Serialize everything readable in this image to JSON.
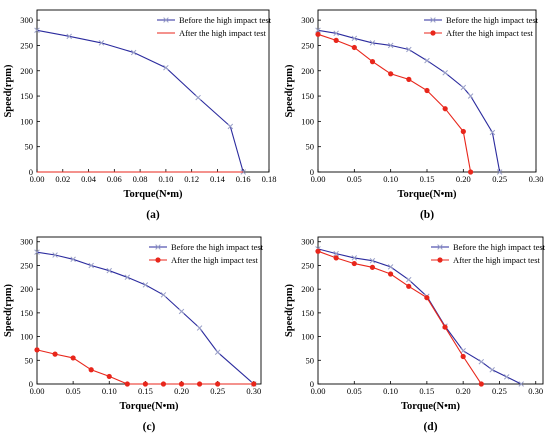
{
  "colors": {
    "before": "#2b2b9e",
    "after": "#e8261b",
    "axis": "#000000"
  },
  "chart_data": [
    {
      "type": "line",
      "panel_label": "(a)",
      "xlabel": "Torque(N•m)",
      "ylabel": "Speed(rpm)",
      "xlim": [
        0,
        0.18
      ],
      "ylim": [
        0,
        320
      ],
      "xticks": [
        "0.00",
        "0.02",
        "0.04",
        "0.06",
        "0.08",
        "0.10",
        "0.12",
        "0.14",
        "0.16",
        "0.18"
      ],
      "yticks": [
        "0",
        "50",
        "100",
        "150",
        "200",
        "250",
        "300"
      ],
      "legend_position": "top-right",
      "series": [
        {
          "name": "Before the high impact test",
          "color": "#2b2b9e",
          "marker": "x",
          "x": [
            0,
            0.025,
            0.05,
            0.075,
            0.1,
            0.125,
            0.15,
            0.16
          ],
          "y": [
            280,
            268,
            255,
            236,
            206,
            147,
            90,
            0
          ]
        },
        {
          "name": "After the high impact test",
          "color": "#e8261b",
          "marker": "none",
          "x": [
            0,
            0.16
          ],
          "y": [
            0,
            0
          ]
        }
      ]
    },
    {
      "type": "line",
      "panel_label": "(b)",
      "xlabel": "Torque(N•m)",
      "ylabel": "Speed(rpm)",
      "xlim": [
        0,
        0.3
      ],
      "ylim": [
        0,
        320
      ],
      "xticks": [
        "0.00",
        "0.05",
        "0.10",
        "0.15",
        "0.20",
        "0.25",
        "0.30"
      ],
      "yticks": [
        "0",
        "50",
        "100",
        "150",
        "200",
        "250",
        "300"
      ],
      "legend_position": "top-right",
      "series": [
        {
          "name": "Before the high impact test",
          "color": "#2b2b9e",
          "marker": "x",
          "x": [
            0,
            0.025,
            0.05,
            0.075,
            0.1,
            0.125,
            0.15,
            0.175,
            0.2,
            0.21,
            0.24,
            0.25
          ],
          "y": [
            280,
            274,
            264,
            255,
            250,
            242,
            220,
            196,
            167,
            150,
            78,
            0
          ]
        },
        {
          "name": "After the high impact test",
          "color": "#e8261b",
          "marker": "o",
          "x": [
            0,
            0.025,
            0.05,
            0.075,
            0.1,
            0.125,
            0.15,
            0.175,
            0.2,
            0.21
          ],
          "y": [
            272,
            260,
            246,
            218,
            194,
            183,
            161,
            125,
            80,
            0
          ]
        }
      ]
    },
    {
      "type": "line",
      "panel_label": "(c)",
      "xlabel": "Torque(N•m)",
      "ylabel": "Speed(rpm)",
      "xlim": [
        0,
        0.31
      ],
      "ylim": [
        0,
        310
      ],
      "xticks": [
        "0.00",
        "0.05",
        "0.10",
        "0.15",
        "0.20",
        "0.25",
        "0.30"
      ],
      "yticks": [
        "0",
        "50",
        "100",
        "150",
        "200",
        "250",
        "300"
      ],
      "legend_position": "top-right",
      "series": [
        {
          "name": "Before the high impact test",
          "color": "#2b2b9e",
          "marker": "x",
          "x": [
            0,
            0.025,
            0.05,
            0.075,
            0.1,
            0.125,
            0.15,
            0.175,
            0.2,
            0.225,
            0.25,
            0.3
          ],
          "y": [
            278,
            272,
            263,
            250,
            239,
            225,
            209,
            188,
            153,
            118,
            67,
            0
          ]
        },
        {
          "name": "After the high impact test",
          "color": "#e8261b",
          "marker": "o",
          "x": [
            0,
            0.025,
            0.05,
            0.075,
            0.1,
            0.125,
            0.15,
            0.175,
            0.2,
            0.225,
            0.25,
            0.3
          ],
          "y": [
            72,
            63,
            55,
            30,
            16,
            0,
            0,
            0,
            0,
            0,
            0,
            0
          ]
        }
      ]
    },
    {
      "type": "line",
      "panel_label": "(d)",
      "xlabel": "Torque(N•m)",
      "ylabel": "Speed(rpm)",
      "xlim": [
        0,
        0.31
      ],
      "ylim": [
        0,
        310
      ],
      "xticks": [
        "0.00",
        "0.05",
        "0.10",
        "0.15",
        "0.20",
        "0.25",
        "0.30"
      ],
      "yticks": [
        "0",
        "50",
        "100",
        "150",
        "200",
        "250",
        "300"
      ],
      "legend_position": "top-right",
      "series": [
        {
          "name": "Before the high impact test",
          "color": "#2b2b9e",
          "marker": "x",
          "x": [
            0,
            0.025,
            0.05,
            0.075,
            0.1,
            0.125,
            0.15,
            0.175,
            0.2,
            0.225,
            0.24,
            0.26,
            0.28
          ],
          "y": [
            285,
            275,
            266,
            260,
            247,
            220,
            185,
            122,
            70,
            47,
            30,
            15,
            0
          ]
        },
        {
          "name": "After the high impact test",
          "color": "#e8261b",
          "marker": "o",
          "x": [
            0,
            0.025,
            0.05,
            0.075,
            0.1,
            0.125,
            0.15,
            0.175,
            0.2,
            0.225
          ],
          "y": [
            280,
            266,
            254,
            246,
            232,
            206,
            182,
            120,
            58,
            0
          ]
        }
      ]
    }
  ]
}
